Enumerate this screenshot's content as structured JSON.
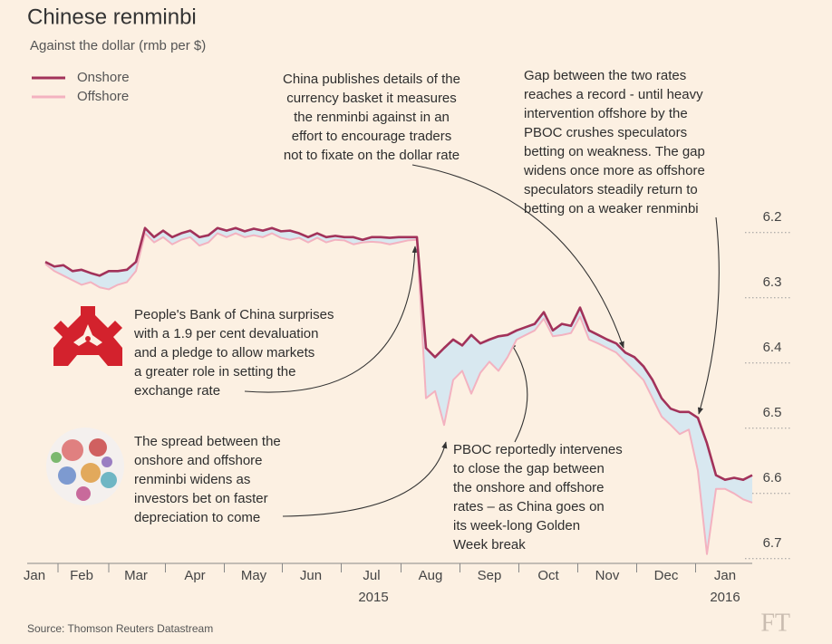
{
  "chart_data": {
    "type": "line",
    "title": "Chinese renminbi",
    "subtitle": "Against the dollar (rmb per $)",
    "source": "Source: Thomson Reuters Datastream",
    "logo": "FT",
    "ylim": [
      6.16,
      6.71
    ],
    "inverted": true,
    "yticks": [
      6.2,
      6.3,
      6.4,
      6.5,
      6.6,
      6.7
    ],
    "grid": true,
    "xlim": [
      -2,
      78
    ],
    "xticks": [
      {
        "value": -1.2,
        "label": "Jan"
      },
      {
        "value": 4,
        "label": "Feb"
      },
      {
        "value": 10,
        "label": "Mar"
      },
      {
        "value": 16.5,
        "label": "Apr"
      },
      {
        "value": 23,
        "label": "May"
      },
      {
        "value": 29.3,
        "label": "Jun"
      },
      {
        "value": 36,
        "label": "Jul"
      },
      {
        "value": 42.5,
        "label": "Aug"
      },
      {
        "value": 49,
        "label": "Sep"
      },
      {
        "value": 55.5,
        "label": "Oct"
      },
      {
        "value": 62,
        "label": "Nov"
      },
      {
        "value": 68.5,
        "label": "Dec"
      },
      {
        "value": 75,
        "label": "Jan"
      }
    ],
    "year_labels": [
      {
        "value": 36.2,
        "label": "2015"
      },
      {
        "value": 75,
        "label": "2016"
      }
    ],
    "legend": "top-left",
    "spread_fill": "#d8e8f0",
    "series": [
      {
        "name": "Onshore",
        "color": "#a2325a",
        "values": [
          6.245,
          6.252,
          6.25,
          6.259,
          6.257,
          6.262,
          6.266,
          6.259,
          6.259,
          6.257,
          6.245,
          6.193,
          6.207,
          6.197,
          6.207,
          6.201,
          6.197,
          6.207,
          6.204,
          6.193,
          6.197,
          6.193,
          6.198,
          6.194,
          6.197,
          6.193,
          6.198,
          6.197,
          6.201,
          6.207,
          6.201,
          6.207,
          6.205,
          6.207,
          6.207,
          6.211,
          6.207,
          6.207,
          6.208,
          6.207,
          6.207,
          6.207,
          6.377,
          6.391,
          6.377,
          6.364,
          6.373,
          6.357,
          6.37,
          6.364,
          6.359,
          6.357,
          6.35,
          6.345,
          6.34,
          6.322,
          6.35,
          6.34,
          6.343,
          6.315,
          6.35,
          6.357,
          6.364,
          6.37,
          6.384,
          6.391,
          6.405,
          6.426,
          6.454,
          6.47,
          6.475,
          6.475,
          6.484,
          6.523,
          6.572,
          6.579,
          6.576,
          6.579,
          6.572
        ]
      },
      {
        "name": "Offshore",
        "color": "#f3b2c0",
        "values": [
          6.248,
          6.259,
          6.266,
          6.273,
          6.28,
          6.276,
          6.284,
          6.287,
          6.28,
          6.276,
          6.259,
          6.201,
          6.215,
          6.207,
          6.218,
          6.211,
          6.207,
          6.22,
          6.215,
          6.201,
          6.207,
          6.201,
          6.207,
          6.204,
          6.207,
          6.201,
          6.208,
          6.211,
          6.208,
          6.215,
          6.208,
          6.215,
          6.211,
          6.212,
          6.218,
          6.215,
          6.214,
          6.215,
          6.218,
          6.215,
          6.212,
          6.211,
          6.454,
          6.443,
          6.495,
          6.426,
          6.412,
          6.447,
          6.415,
          6.398,
          6.412,
          6.391,
          6.364,
          6.357,
          6.35,
          6.332,
          6.359,
          6.357,
          6.354,
          6.329,
          6.364,
          6.37,
          6.377,
          6.384,
          6.398,
          6.412,
          6.426,
          6.454,
          6.482,
          6.495,
          6.509,
          6.502,
          6.565,
          6.693,
          6.593,
          6.593,
          6.6,
          6.609,
          6.614
        ]
      }
    ],
    "annotations": [
      {
        "lines": [
          "China publishes details of the",
          "currency basket it measures",
          "the renminbi against in an",
          "effort to encourage traders",
          "not to fixate on the dollar rate"
        ]
      },
      {
        "lines": [
          "Gap between the two rates",
          "reaches a record  - until heavy",
          "intervention offshore by the",
          "PBOC crushes speculators",
          "betting on weakness. The gap",
          "widens once more as offshore",
          "speculators steadily return to",
          "betting on a weaker renminbi"
        ]
      },
      {
        "lines": [
          "People's Bank of China surprises",
          "with  a 1.9 per cent devaluation",
          "and a pledge to allow markets",
          "a greater role in setting the",
          "exchange rate"
        ]
      },
      {
        "lines": [
          "The spread between the",
          "onshore and offshore",
          "renminbi widens as",
          "investors bet on faster",
          "depreciation to come"
        ]
      },
      {
        "lines": [
          "PBOC reportedly intervenes",
          "to close the gap between",
          "the onshore and offshore",
          "rates – as China goes on",
          "its week-long Golden",
          "Week break"
        ]
      }
    ]
  }
}
